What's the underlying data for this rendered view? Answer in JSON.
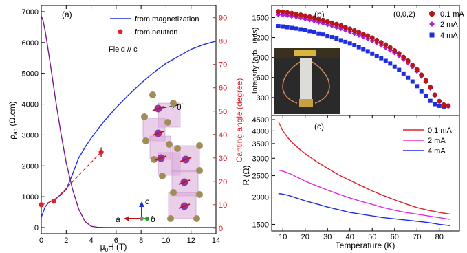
{
  "chart_data": [
    {
      "panel": "a",
      "type": "line",
      "panel_label": "(a)",
      "annotation": "Field // c",
      "theta_label": "θ",
      "xlabel_main": "μ",
      "xlabel_sub": "0",
      "xlabel_tail": "H (T)",
      "ylabel_main": "ρ",
      "ylabel_sub": "ab",
      "ylabel_tail": " (Ω.cm)",
      "y2label": "Canting angle (degree)",
      "xlim": [
        0,
        14
      ],
      "ylim": [
        -200,
        7200
      ],
      "y2lim": [
        -2.4,
        95.2
      ],
      "xticks": [
        "0",
        "2",
        "4",
        "6",
        "8",
        "10",
        "12",
        "14"
      ],
      "yticks": [
        "0",
        "1000",
        "2000",
        "3000",
        "4000",
        "5000",
        "6000",
        "7000"
      ],
      "y2ticks": [
        "0",
        "10",
        "20",
        "30",
        "40",
        "50",
        "60",
        "70",
        "80",
        "90"
      ],
      "axis_letters": {
        "a": "a",
        "b": "b",
        "c": "c"
      },
      "colors": {
        "magnetization": "#1f2de0",
        "neutron": "#e0202a",
        "resistivity": "#7a1a8a"
      },
      "series": [
        {
          "name": "from magnetization",
          "axis": "right",
          "x": [
            0.02,
            0.1,
            0.3,
            0.6,
            1.0,
            1.5,
            2.0,
            2.5,
            3.0,
            3.5,
            4.0,
            5.0,
            6.0,
            7.0,
            8.0,
            9.0,
            10.0,
            11.0,
            12.0,
            13.0,
            14.0
          ],
          "y": [
            5,
            6,
            9,
            11,
            12,
            14,
            16.5,
            23,
            30,
            34.5,
            38.5,
            45.5,
            51.5,
            57,
            62,
            66.5,
            70.5,
            73.5,
            76.5,
            78.5,
            80
          ]
        },
        {
          "name": "from neutron",
          "axis": "right",
          "x": [
            0,
            1.0,
            4.8
          ],
          "y": [
            10,
            11.5,
            32.5
          ],
          "yerr": [
            1,
            1,
            2
          ]
        },
        {
          "name": "",
          "axis": "left",
          "x": [
            0,
            0.05,
            0.15,
            0.3,
            0.5,
            0.8,
            1.2,
            1.6,
            2.0,
            2.5,
            3.0,
            3.5,
            4.0,
            4.5,
            5.0,
            6.0,
            8.0,
            10.0,
            12.0,
            14.0
          ],
          "y": [
            6850,
            6820,
            6700,
            6400,
            5900,
            5100,
            4000,
            3000,
            2100,
            1250,
            600,
            200,
            40,
            10,
            5,
            3,
            2,
            2,
            2,
            2
          ]
        }
      ]
    },
    {
      "panel": "b",
      "type": "scatter",
      "panel_label": "(b)",
      "annotation": "(0,0,2)",
      "ylabel": "Intensity (arb. units)",
      "xlim": [
        5,
        89
      ],
      "ylim": [
        30,
        1680
      ],
      "yticks": [
        "300",
        "600",
        "900",
        "1200",
        "1500"
      ],
      "colors": {
        "0.1 mA": "#c0141c",
        "2 mA": "#b01ed8",
        "4 mA": "#1f2de0"
      },
      "series": [
        {
          "name": "0.1 mA",
          "x": [
            8,
            10,
            12,
            14,
            16,
            18,
            20,
            22,
            24,
            26,
            28,
            30,
            32,
            34,
            36,
            38,
            40,
            42,
            44,
            46,
            48,
            50,
            52,
            54,
            56,
            58,
            60,
            62,
            64,
            66,
            68,
            70,
            72,
            74,
            76,
            78,
            80,
            82,
            84
          ],
          "y": [
            1590,
            1585,
            1575,
            1565,
            1550,
            1540,
            1525,
            1510,
            1495,
            1475,
            1460,
            1440,
            1420,
            1400,
            1380,
            1355,
            1330,
            1305,
            1280,
            1250,
            1225,
            1195,
            1160,
            1125,
            1090,
            1050,
            1005,
            960,
            905,
            850,
            785,
            720,
            640,
            555,
            455,
            340,
            245,
            190,
            175
          ]
        },
        {
          "name": "2 mA",
          "x": [
            8,
            10,
            12,
            14,
            16,
            18,
            20,
            22,
            24,
            26,
            28,
            30,
            32,
            34,
            36,
            38,
            40,
            42,
            44,
            46,
            48,
            50,
            52,
            54,
            56,
            58,
            60,
            62,
            64,
            66,
            68,
            70,
            72,
            74,
            76,
            78,
            80,
            82,
            84
          ],
          "y": [
            1545,
            1540,
            1530,
            1520,
            1510,
            1495,
            1480,
            1465,
            1450,
            1430,
            1415,
            1395,
            1375,
            1355,
            1335,
            1310,
            1285,
            1260,
            1235,
            1210,
            1180,
            1150,
            1120,
            1085,
            1050,
            1010,
            970,
            925,
            875,
            820,
            760,
            695,
            620,
            535,
            440,
            330,
            240,
            185,
            170
          ]
        },
        {
          "name": "4 mA",
          "x": [
            8,
            10,
            12,
            14,
            16,
            18,
            20,
            22,
            24,
            26,
            28,
            30,
            32,
            34,
            36,
            38,
            40,
            42,
            44,
            46,
            48,
            50,
            52,
            54,
            56,
            58,
            60,
            62,
            64,
            66,
            68,
            70,
            72,
            74,
            76,
            78,
            80,
            82
          ],
          "y": [
            1370,
            1365,
            1355,
            1345,
            1335,
            1325,
            1310,
            1295,
            1280,
            1260,
            1245,
            1225,
            1205,
            1185,
            1160,
            1135,
            1110,
            1085,
            1055,
            1025,
            995,
            960,
            925,
            890,
            850,
            810,
            765,
            715,
            660,
            600,
            540,
            470,
            395,
            320,
            250,
            200,
            175,
            165
          ]
        }
      ]
    },
    {
      "panel": "c",
      "type": "line",
      "panel_label": "(c)",
      "xlabel": "Temperature (K)",
      "ylabel": "R (Ω)",
      "y_scale": "log",
      "xlim": [
        5,
        89
      ],
      "ylim": [
        1400,
        4700
      ],
      "xticks": [
        "10",
        "20",
        "30",
        "40",
        "50",
        "60",
        "70",
        "80"
      ],
      "yticks": [
        "1500",
        "2000",
        "2500",
        "3000",
        "3500",
        "4000",
        "4500"
      ],
      "colors": {
        "0.1 mA": "#e0202a",
        "2 mA": "#e02ce0",
        "4 mA": "#1f2de0"
      },
      "series": [
        {
          "name": "0.1 mA",
          "x": [
            8,
            9,
            10,
            12,
            14,
            16,
            18,
            20,
            25,
            30,
            35,
            40,
            45,
            50,
            55,
            60,
            65,
            70,
            75,
            80,
            85
          ],
          "y": [
            4400,
            4200,
            4000,
            3750,
            3550,
            3400,
            3270,
            3150,
            2900,
            2700,
            2520,
            2380,
            2250,
            2130,
            2030,
            1940,
            1860,
            1790,
            1740,
            1700,
            1670
          ]
        },
        {
          "name": "2 mA",
          "x": [
            8,
            9,
            10,
            12,
            14,
            16,
            18,
            20,
            25,
            30,
            35,
            40,
            45,
            50,
            55,
            60,
            65,
            70,
            75,
            80,
            85
          ],
          "y": [
            2650,
            2640,
            2620,
            2580,
            2530,
            2470,
            2420,
            2360,
            2250,
            2150,
            2060,
            1980,
            1910,
            1850,
            1790,
            1740,
            1700,
            1670,
            1640,
            1610,
            1580
          ]
        },
        {
          "name": "4 mA",
          "x": [
            8,
            9,
            10,
            12,
            14,
            16,
            18,
            20,
            25,
            30,
            35,
            40,
            45,
            50,
            55,
            60,
            65,
            70,
            75,
            80,
            85
          ],
          "y": [
            2070,
            2068,
            2060,
            2040,
            2010,
            1980,
            1950,
            1920,
            1860,
            1800,
            1750,
            1700,
            1670,
            1640,
            1610,
            1590,
            1570,
            1550,
            1530,
            1500,
            1480
          ]
        }
      ]
    }
  ]
}
